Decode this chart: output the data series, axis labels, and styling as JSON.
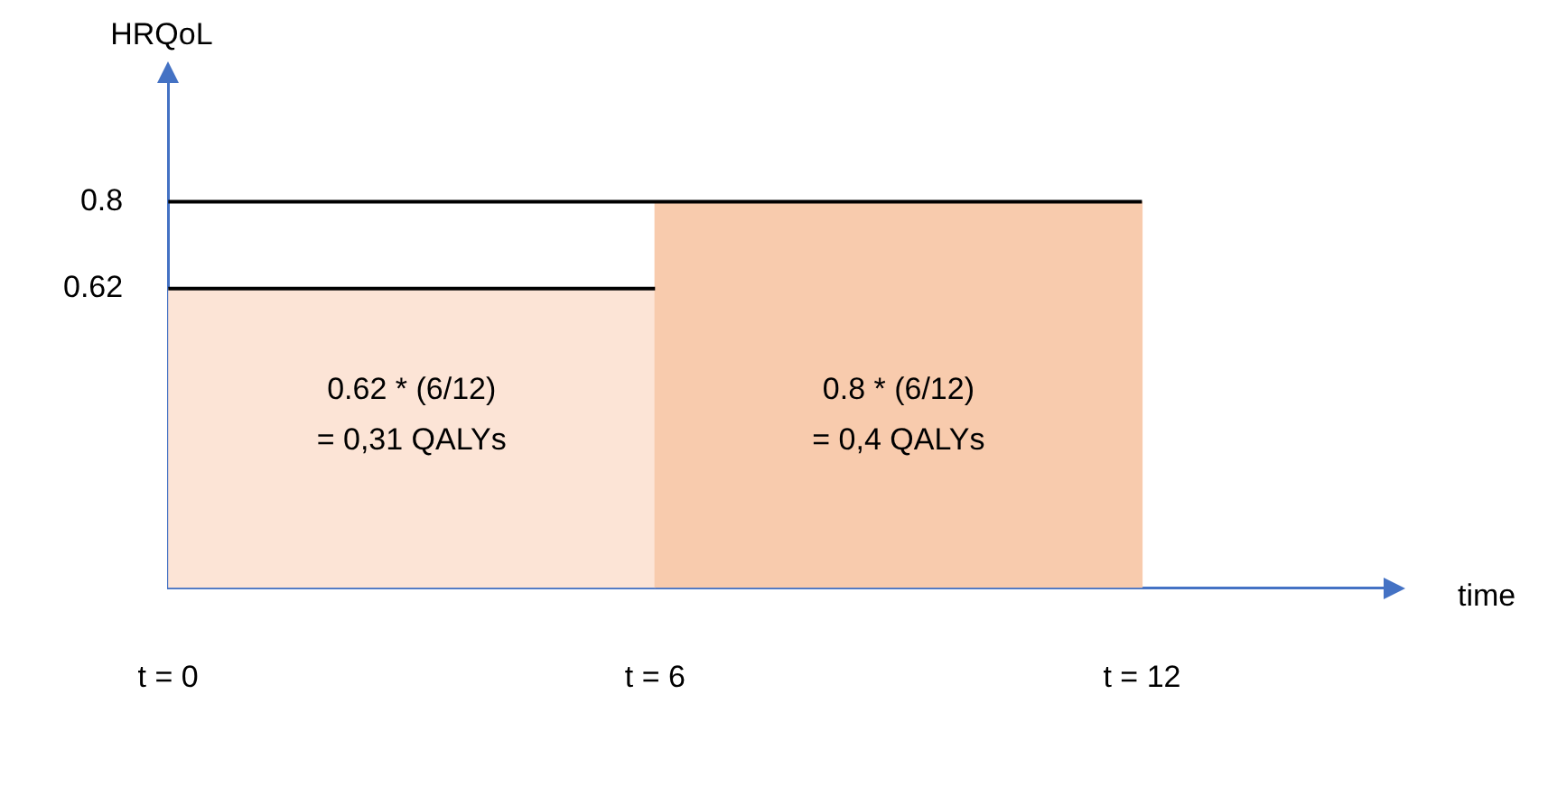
{
  "chart_data": {
    "type": "bar",
    "xlabel": "time",
    "ylabel": "HRQoL",
    "xlim": [
      0,
      15
    ],
    "xticks": [
      {
        "value": 0,
        "label": "t = 0"
      },
      {
        "value": 6,
        "label": "t = 6"
      },
      {
        "value": 12,
        "label": "t = 12"
      }
    ],
    "ylim": [
      0,
      1.05
    ],
    "yticks": [
      0.62,
      0.8
    ],
    "series": [
      {
        "x": [
          3,
          9
        ],
        "values": [
          0.62,
          0.8
        ],
        "colors": [
          "#fce4d6",
          "#f8cbad"
        ]
      },
      {
        "type": "line",
        "x": [
          0,
          6
        ],
        "values": [
          0.62,
          0.62
        ],
        "color": "#000000"
      },
      {
        "type": "line",
        "x": [
          0,
          12
        ],
        "values": [
          0.8,
          0.8
        ],
        "color": "#000000"
      }
    ],
    "annotations": [
      "0.62 * (6/12)\n= 0,31 QALYs",
      "0.8 * (6/12)\n= 0,4 QALYs"
    ],
    "grid": false,
    "legend": false,
    "marker": "none",
    "line_style": "solid"
  }
}
